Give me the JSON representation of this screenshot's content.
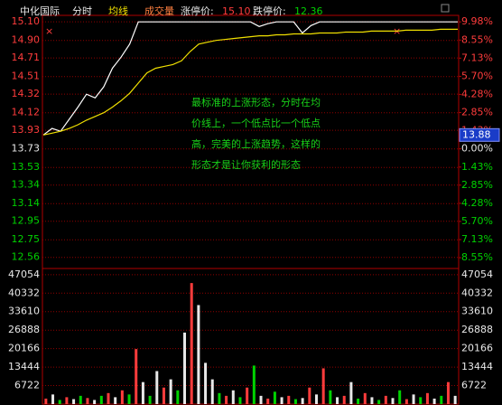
{
  "chart_data": {
    "type": "line",
    "header": {
      "name": "中化国际",
      "mode": "分时",
      "avg": "均线",
      "vol": "成交量",
      "limit_up_label": "涨停价:",
      "limit_up": "15.10",
      "limit_down_label": "跌停价:",
      "limit_down": "12.36"
    },
    "annotation": [
      "最标准的上涨形态，分时在均",
      "价线上，一个低点比一个低点",
      "高，完美的上涨趋势，这样的",
      "形态才是让你获利的形态"
    ],
    "ylim": [
      12.44,
      15.17
    ],
    "yticks": [
      {
        "value": 15.1,
        "label": "15.10"
      },
      {
        "value": 14.9,
        "label": "14.90"
      },
      14.71,
      14.51,
      14.32,
      14.12,
      13.93,
      13.73,
      13.53,
      13.34,
      13.14,
      12.95,
      12.75,
      12.56
    ],
    "y2lim": [
      -9.4,
      10.49
    ],
    "y2ticks": [
      {
        "value": 9.98,
        "label": "9.98%"
      },
      {
        "value": 8.55,
        "label": "8.55%"
      },
      {
        "value": 7.13,
        "label": "7.13%"
      },
      {
        "value": 5.7,
        "label": "5.70%"
      },
      {
        "value": 4.28,
        "label": "4.28%"
      },
      {
        "value": 2.85,
        "label": "2.85%"
      },
      {
        "value": 1.43,
        "label": "1.43%"
      },
      {
        "value": 0,
        "label": "0.00%"
      },
      {
        "value": -1.43,
        "label": "1.43%"
      },
      {
        "value": -2.85,
        "label": "2.85%"
      },
      {
        "value": -4.28,
        "label": "4.28%"
      },
      {
        "value": -5.7,
        "label": "5.70%"
      },
      {
        "value": -7.13,
        "label": "7.13%"
      },
      {
        "value": -8.55,
        "label": "8.55%"
      }
    ],
    "up_color": "#ff3c3c",
    "down_color": "#00d200",
    "flat_color": "#e8e8e8",
    "grid": true,
    "marker": {
      "value": 13.88,
      "label": "13.88",
      "color": "#1a3cc8"
    },
    "series": [
      {
        "color": "#ffffff",
        "values": [
          13.88,
          13.95,
          13.92,
          14.05,
          14.18,
          14.32,
          14.28,
          14.4,
          14.6,
          14.72,
          14.86,
          15.1,
          15.1,
          15.1,
          15.1,
          15.1,
          15.1,
          15.1,
          15.1,
          15.1,
          15.1,
          15.1,
          15.1,
          15.1,
          15.1,
          15.05,
          15.08,
          15.1,
          15.1,
          15.1,
          14.98,
          15.06,
          15.1,
          15.1,
          15.1,
          15.1,
          15.1,
          15.1,
          15.1,
          15.1,
          15.1,
          15.1,
          15.1,
          15.1,
          15.1,
          15.1,
          15.1,
          15.1,
          15.1
        ]
      },
      {
        "color": "#f0e000",
        "values": [
          13.88,
          13.9,
          13.92,
          13.95,
          13.99,
          14.04,
          14.08,
          14.12,
          14.18,
          14.25,
          14.33,
          14.44,
          14.55,
          14.6,
          14.62,
          14.64,
          14.68,
          14.78,
          14.86,
          14.88,
          14.9,
          14.91,
          14.92,
          14.93,
          14.94,
          14.95,
          14.95,
          14.96,
          14.96,
          14.97,
          14.97,
          14.97,
          14.98,
          14.98,
          14.98,
          14.99,
          14.99,
          14.99,
          15.0,
          15.0,
          15.0,
          15.0,
          15.01,
          15.01,
          15.01,
          15.01,
          15.02,
          15.02,
          15.02
        ]
      }
    ],
    "volume": {
      "ylim": [
        0,
        49300
      ],
      "yticks": [
        47054,
        40332,
        33610,
        26888,
        20166,
        13444,
        6722
      ],
      "values": [
        2000,
        3500,
        1500,
        2500,
        1800,
        3000,
        2200,
        1500,
        3000,
        4000,
        2500,
        5000,
        3500,
        20000,
        8000,
        3000,
        12000,
        6000,
        9000,
        5000,
        26000,
        44000,
        36000,
        15000,
        9000,
        4000,
        3000,
        5000,
        2500,
        6000,
        14000,
        3000,
        2000,
        4500,
        2500,
        3000,
        1800,
        2200,
        6000,
        3500,
        13000,
        5000,
        2500,
        3000,
        8000,
        2000,
        4000,
        2500,
        1500,
        3000,
        2200,
        5000,
        1800,
        3500,
        2500,
        4000,
        2000,
        3000,
        8000,
        3000
      ],
      "colors": [
        "#ff3c3c",
        "#e8e8e8",
        "#00d200",
        "#ff3c3c",
        "#e8e8e8",
        "#00d200",
        "#ff3c3c",
        "#e8e8e8",
        "#00d200",
        "#ff3c3c",
        "#e8e8e8",
        "#ff3c3c",
        "#00d200",
        "#ff3c3c",
        "#e8e8e8",
        "#00d200",
        "#e8e8e8",
        "#ff3c3c",
        "#e8e8e8",
        "#00d200",
        "#e8e8e8",
        "#ff3c3c",
        "#e8e8e8",
        "#e8e8e8",
        "#e8e8e8",
        "#00d200",
        "#ff3c3c",
        "#e8e8e8",
        "#00d200",
        "#ff3c3c",
        "#00d200",
        "#e8e8e8",
        "#ff3c3c",
        "#00d200",
        "#e8e8e8",
        "#ff3c3c",
        "#00d200",
        "#e8e8e8",
        "#ff3c3c",
        "#e8e8e8",
        "#ff3c3c",
        "#00d200",
        "#e8e8e8",
        "#ff3c3c",
        "#e8e8e8",
        "#00d200",
        "#ff3c3c",
        "#e8e8e8",
        "#00d200",
        "#ff3c3c",
        "#e8e8e8",
        "#00d200",
        "#ff3c3c",
        "#e8e8e8",
        "#00d200",
        "#ff3c3c",
        "#e8e8e8",
        "#00d200",
        "#ff3c3c",
        "#e8e8e8"
      ]
    }
  }
}
